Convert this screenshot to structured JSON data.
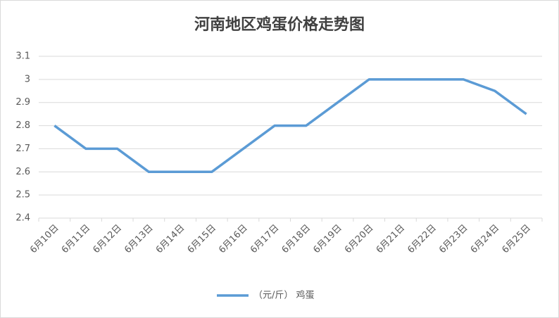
{
  "chart_data": {
    "type": "line",
    "title": "河南地区鸡蛋价格走势图",
    "categories": [
      "6月10日",
      "6月11日",
      "6月12日",
      "6月13日",
      "6月14日",
      "6月15日",
      "6月16日",
      "6月17日",
      "6月18日",
      "6月19日",
      "6月20日",
      "6月21日",
      "6月22日",
      "6月23日",
      "6月24日",
      "6月25日"
    ],
    "series": [
      {
        "name": "（元/斤） 鸡蛋",
        "color": "#5b9bd5",
        "values": [
          2.8,
          2.7,
          2.7,
          2.6,
          2.6,
          2.6,
          2.7,
          2.8,
          2.8,
          2.9,
          3.0,
          3.0,
          3.0,
          3.0,
          2.95,
          2.85
        ]
      }
    ],
    "ylim": [
      2.4,
      3.1
    ],
    "yticks": [
      2.4,
      2.5,
      2.6,
      2.7,
      2.8,
      2.9,
      3,
      3.1
    ],
    "grid": true,
    "legend": "bottom"
  }
}
